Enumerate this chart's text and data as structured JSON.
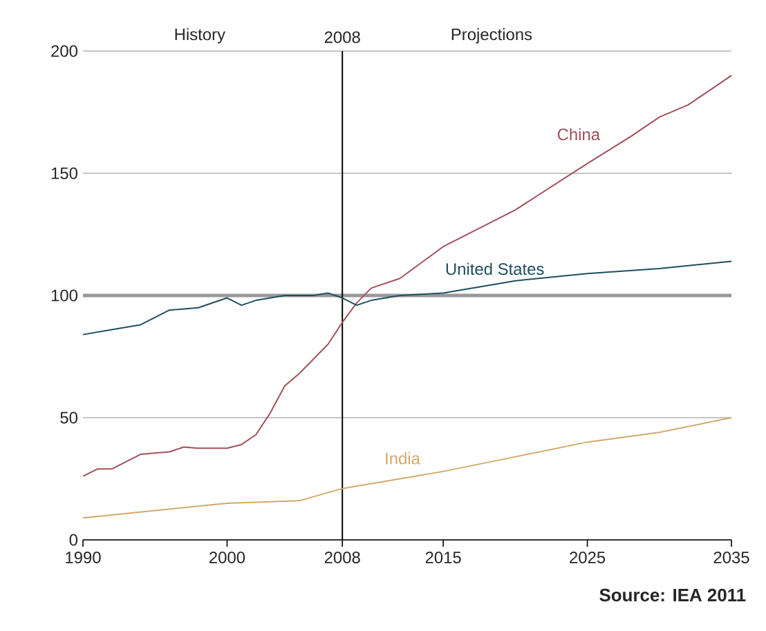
{
  "chart_data": {
    "type": "line",
    "xlim": [
      1990,
      2035
    ],
    "xticks": [
      1990,
      2000,
      2008,
      2015,
      2025,
      2035
    ],
    "ylim": [
      0,
      200
    ],
    "yticks": [
      0,
      50,
      100,
      150,
      200
    ],
    "grid": "y",
    "legend": false,
    "marker": "none",
    "line_style": "solid",
    "series": [
      {
        "name": "China",
        "color": "#a0505a",
        "x": [
          1990,
          1991,
          1992,
          1994,
          1996,
          1997,
          1998,
          2000,
          2001,
          2002,
          2003,
          2004,
          2005,
          2006,
          2007,
          2008,
          2009,
          2010,
          2012,
          2015,
          2018,
          2020,
          2025,
          2028,
          2030,
          2032,
          2035
        ],
        "values": [
          26,
          29,
          29,
          35,
          36,
          38,
          37.5,
          37.5,
          39,
          43,
          52,
          63,
          68,
          74,
          80,
          89,
          97,
          103,
          107,
          120,
          129,
          135,
          154,
          165,
          173,
          178,
          190
        ]
      },
      {
        "name": "United States",
        "color": "#1f4e5f",
        "x": [
          1990,
          1992,
          1994,
          1996,
          1998,
          2000,
          2001,
          2002,
          2004,
          2006,
          2007,
          2008,
          2009,
          2010,
          2012,
          2015,
          2020,
          2025,
          2030,
          2035
        ],
        "values": [
          84,
          86,
          88,
          94,
          95,
          99,
          96,
          98,
          100,
          100,
          101,
          99,
          96,
          98,
          100,
          101,
          106,
          109,
          111,
          114
        ]
      },
      {
        "name": "India",
        "color": "#d4a86a",
        "x": [
          1990,
          1995,
          2000,
          2005,
          2008,
          2012,
          2015,
          2020,
          2025,
          2030,
          2035
        ],
        "values": [
          9,
          12,
          15,
          16,
          21,
          25,
          28,
          34,
          40,
          44,
          50
        ]
      }
    ],
    "ref_lines": [
      {
        "axis": "y",
        "value": 100,
        "color": "#999999"
      },
      {
        "axis": "x",
        "value": 2008,
        "label": "2008",
        "color": "#000000"
      }
    ],
    "annotations": [
      "History",
      "Projections",
      "Source: IEA 2011"
    ]
  }
}
